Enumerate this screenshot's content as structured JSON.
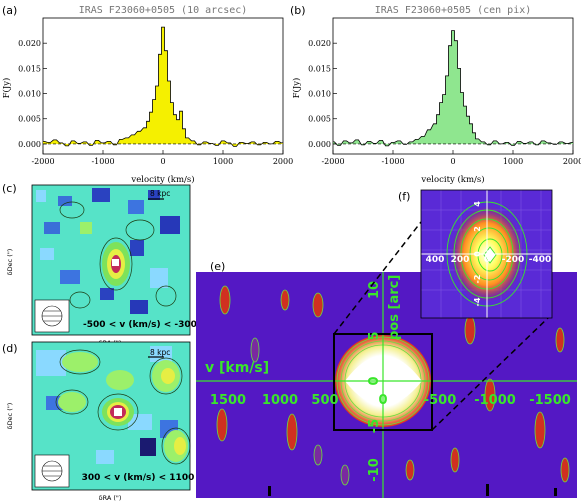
{
  "panels": {
    "a": {
      "letter": "(a)",
      "title": "IRAS F23060+0505 (10 arcsec)"
    },
    "b": {
      "letter": "(b)",
      "title": "IRAS F23060+0505 (cen pix)"
    },
    "c": {
      "letter": "(c)",
      "scale": "8 kpc",
      "range": "-500 < v (km/s) < -300",
      "ylabel": "δDec (\")",
      "xlabel": "δRA (\")"
    },
    "d": {
      "letter": "(d)",
      "scale": "8 kpc",
      "range": "300 < v (km/s) < 1100",
      "ylabel": "δDec (\")",
      "xlabel": "δRA (\")"
    },
    "e": {
      "letter": "(e)",
      "vlabel": "v [km/s]",
      "poslabel": "pos [arc]",
      "vticks": [
        "1500",
        "1000",
        "500",
        "0",
        "-500",
        "-1000",
        "-1500"
      ],
      "posticks": [
        "10",
        "5",
        "0",
        "-5",
        "-10"
      ]
    },
    "f": {
      "letter": "(f)",
      "vticks": [
        "400",
        "200",
        "0",
        "-200",
        "-400"
      ],
      "posticks": [
        "4",
        "2",
        "0",
        "-2",
        "-4"
      ]
    }
  },
  "chart_data": [
    {
      "type": "line",
      "title": "IRAS F23060+0505 (10 arcsec)",
      "xlabel": "velocity (km/s)",
      "ylabel": "F(Jy)",
      "xlim": [
        -2000,
        2000
      ],
      "ylim": [
        -0.002,
        0.025
      ],
      "xticks": [
        "-2000",
        "-1000",
        "0",
        "1000",
        "2000"
      ],
      "yticks": [
        "0.000",
        "0.005",
        "0.010",
        "0.015",
        "0.020"
      ],
      "fill": "#f5f000",
      "x": [
        -2000,
        -1900,
        -1800,
        -1700,
        -1600,
        -1500,
        -1400,
        -1300,
        -1200,
        -1100,
        -1000,
        -900,
        -800,
        -700,
        -600,
        -500,
        -400,
        -300,
        -250,
        -200,
        -150,
        -100,
        -50,
        0,
        50,
        100,
        150,
        200,
        250,
        300,
        350,
        400,
        500,
        600,
        700,
        800,
        900,
        1000,
        1100,
        1200,
        1300,
        1400,
        1500,
        1600,
        1700,
        1800,
        1900,
        2000
      ],
      "y": [
        0.0005,
        0.0003,
        0.0008,
        0.0002,
        -0.0004,
        0.0006,
        0.0001,
        0.0004,
        -0.0003,
        0.0007,
        0.0002,
        0.0005,
        -0.0002,
        0.0009,
        0.0012,
        0.0018,
        0.0025,
        0.0032,
        0.0045,
        0.0063,
        0.0088,
        0.0115,
        0.0178,
        0.0232,
        0.0185,
        0.0125,
        0.0082,
        0.0058,
        0.0048,
        0.0065,
        0.003,
        0.0012,
        0.0006,
        -0.0002,
        0.0004,
        0.0001,
        -0.0003,
        0.0006,
        0.0002,
        -0.0005,
        0.0003,
        0.0001,
        0.0004,
        -0.0002,
        0.0003,
        0.0,
        0.0005,
        0.0002
      ]
    },
    {
      "type": "line",
      "title": "IRAS F23060+0505 (cen pix)",
      "xlabel": "velocity (km/s)",
      "ylabel": "F(Jy)",
      "xlim": [
        -2000,
        2000
      ],
      "ylim": [
        -0.002,
        0.025
      ],
      "xticks": [
        "-2000",
        "-1000",
        "0",
        "1000",
        "2000"
      ],
      "yticks": [
        "0.000",
        "0.005",
        "0.010",
        "0.015",
        "0.020"
      ],
      "fill": "#8fe68f",
      "x": [
        -2000,
        -1900,
        -1800,
        -1700,
        -1600,
        -1500,
        -1400,
        -1300,
        -1200,
        -1100,
        -1000,
        -900,
        -800,
        -700,
        -600,
        -500,
        -400,
        -300,
        -250,
        -200,
        -150,
        -100,
        -50,
        0,
        50,
        100,
        150,
        200,
        250,
        300,
        350,
        400,
        500,
        600,
        700,
        800,
        900,
        1000,
        1100,
        1200,
        1300,
        1400,
        1500,
        1600,
        1700,
        1800,
        1900,
        2000
      ],
      "y": [
        0.0004,
        -0.0003,
        0.0006,
        0.0002,
        0.0008,
        -0.0002,
        0.0005,
        0.0001,
        0.0007,
        -0.0004,
        0.0003,
        0.0006,
        -0.0001,
        0.0004,
        0.0009,
        0.0015,
        0.0028,
        0.004,
        0.0058,
        0.0082,
        0.0098,
        0.0135,
        0.0195,
        0.0225,
        0.0205,
        0.015,
        0.0102,
        0.0075,
        0.0055,
        0.004,
        0.0022,
        0.001,
        0.0004,
        -0.0002,
        0.0006,
        0.0,
        0.0003,
        -0.0003,
        0.0005,
        0.0001,
        0.0004,
        -0.0002,
        0.0006,
        0.0002,
        -0.0001,
        0.0004,
        0.0001,
        0.0003
      ]
    }
  ]
}
